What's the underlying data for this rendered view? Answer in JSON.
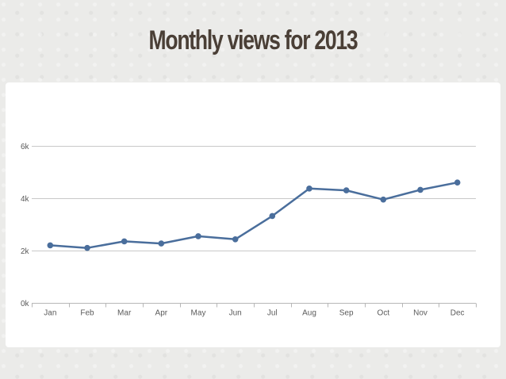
{
  "title": "Monthly views for 2013",
  "chart_data": {
    "type": "line",
    "title": "Monthly views for 2013",
    "xlabel": "",
    "ylabel": "",
    "categories": [
      "Jan",
      "Feb",
      "Mar",
      "Apr",
      "May",
      "Jun",
      "Jul",
      "Aug",
      "Sep",
      "Oct",
      "Nov",
      "Dec"
    ],
    "series": [
      {
        "values": [
          2200,
          2100,
          2350,
          2270,
          2550,
          2430,
          3320,
          4370,
          4300,
          3950,
          4320,
          4600
        ]
      }
    ],
    "ylim": [
      0,
      6000
    ],
    "yticks": [
      0,
      2000,
      4000,
      6000
    ],
    "ytick_labels": [
      "0k",
      "2k",
      "4k",
      "6k"
    ],
    "grid": true,
    "legend": "none",
    "colors": {
      "line": "#4a6e9c",
      "grid": "#c8c8c8",
      "axis": "#b7b7b7"
    }
  }
}
